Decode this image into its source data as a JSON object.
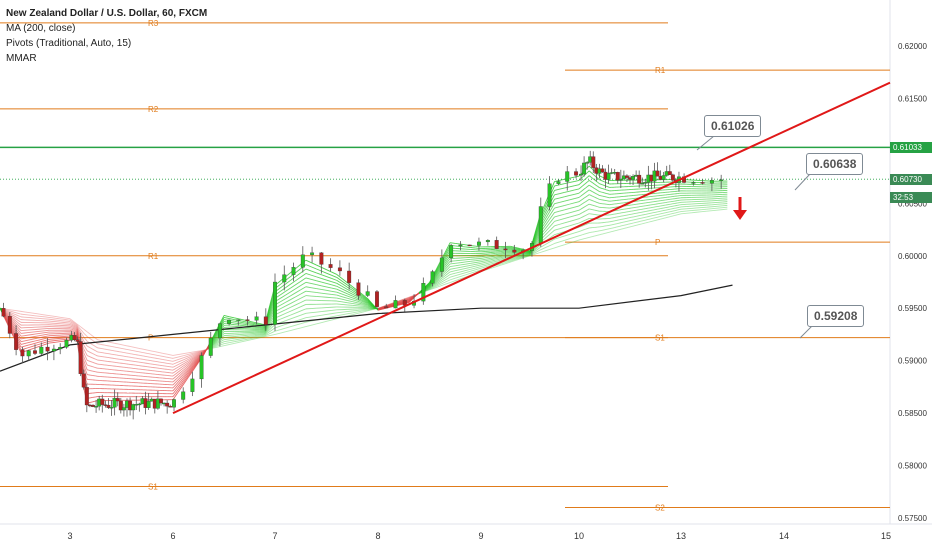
{
  "legend": {
    "title": "New Zealand Dollar / U.S. Dollar, 60, FXCM",
    "ma": "MA (200, close)",
    "pivots": "Pivots (Traditional, Auto, 15)",
    "mmar": "MMAR"
  },
  "callouts": {
    "c1": "0.61026",
    "c2": "0.60638",
    "c3": "0.59208"
  },
  "price_tags": {
    "green": "0.61033",
    "current": "0.60730",
    "timer": "32:53"
  },
  "colors": {
    "pivot": "#e07b1a",
    "bull": "#27c427",
    "bear": "#b22222",
    "trend": "#e01818",
    "resistance": "#26a244",
    "ma": "#222222"
  },
  "chart_data": {
    "type": "candlestick",
    "title": "New Zealand Dollar / U.S. Dollar, 60, FXCM",
    "x_ticks": [
      "3",
      "6",
      "7",
      "8",
      "9",
      "10",
      "13",
      "14",
      "15"
    ],
    "y_ticks": [
      "0.62000",
      "0.61500",
      "0.60500",
      "0.60000",
      "0.59500",
      "0.59000",
      "0.58500",
      "0.58000",
      "0.57500"
    ],
    "ylim": [
      0.5745,
      0.6245
    ],
    "pivot_levels": [
      {
        "label": "R3",
        "value": 0.6222
      },
      {
        "label": "R2",
        "value": 0.614
      },
      {
        "label": "R1",
        "value": 0.6
      },
      {
        "label": "P",
        "value": 0.5922
      },
      {
        "label": "S1",
        "value": 0.578
      },
      {
        "label": "R1",
        "value": 0.6177
      },
      {
        "label": "P",
        "value": 0.6013
      },
      {
        "label": "S1",
        "value": 0.5922
      },
      {
        "label": "S2",
        "value": 0.576
      }
    ],
    "resistance_line": 0.61033,
    "current_price": 0.6073,
    "trendline": {
      "start": [
        "6",
        0.585
      ],
      "end": [
        "14",
        0.613
      ]
    },
    "price_path": [
      [
        "2",
        0.595
      ],
      [
        "2.3",
        0.5905
      ],
      [
        "2.7",
        0.5915
      ],
      [
        "3.2",
        0.592
      ],
      [
        "3.4",
        0.587
      ],
      [
        "3.5",
        0.5855
      ],
      [
        "3.8",
        0.5858
      ],
      [
        "6",
        0.586
      ],
      [
        "6.3",
        0.5905
      ],
      [
        "6.5",
        0.5945
      ],
      [
        "6.9",
        0.5935
      ],
      [
        "7",
        0.5975
      ],
      [
        "7.3",
        0.6
      ],
      [
        "7.6",
        0.5985
      ],
      [
        "7.9",
        0.596
      ],
      [
        "8",
        0.5948
      ],
      [
        "8.3",
        0.5955
      ],
      [
        "8.5",
        0.5975
      ],
      [
        "8.7",
        0.6015
      ],
      [
        "9",
        0.601
      ],
      [
        "9.3",
        0.601
      ],
      [
        "9.5",
        0.6005
      ],
      [
        "9.6",
        0.604
      ],
      [
        "9.75",
        0.6075
      ],
      [
        "10",
        0.608
      ],
      [
        "10.3",
        0.609
      ],
      [
        "10.6",
        0.608
      ],
      [
        "10.9",
        0.6075
      ],
      [
        "13",
        0.6075
      ],
      [
        "13.3",
        0.6073
      ],
      [
        "13.5",
        0.6073
      ]
    ],
    "ma200": [
      [
        "2",
        0.589
      ],
      [
        "3",
        0.5915
      ],
      [
        "6",
        0.5925
      ],
      [
        "7",
        0.5935
      ],
      [
        "8",
        0.5945
      ],
      [
        "9",
        0.595
      ],
      [
        "10",
        0.595
      ],
      [
        "13",
        0.5962
      ],
      [
        "13.5",
        0.5972
      ]
    ],
    "ribbon_lower": [
      [
        "2",
        0.595
      ],
      [
        "3",
        0.594
      ],
      [
        "3.8",
        0.592
      ],
      [
        "6",
        0.5905
      ],
      [
        "6.3",
        0.591
      ],
      [
        "7",
        0.5925
      ],
      [
        "8",
        0.595
      ],
      [
        "9",
        0.5985
      ],
      [
        "10",
        0.6015
      ],
      [
        "13",
        0.604
      ],
      [
        "13.5",
        0.6045
      ]
    ]
  }
}
